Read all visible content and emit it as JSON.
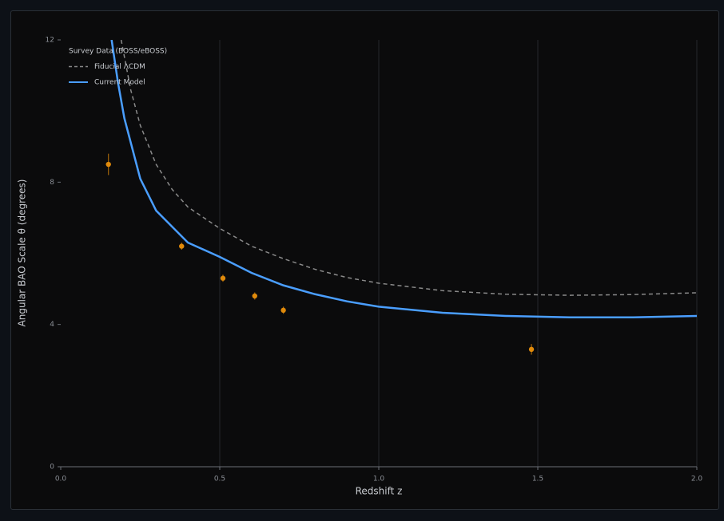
{
  "chart_data": {
    "type": "scatter",
    "xlabel": "Redshift z",
    "ylabel": "Angular BAO Scale θ (degrees)",
    "xlim": [
      0,
      2
    ],
    "ylim": [
      0,
      12
    ],
    "xticks": [
      {
        "value": 0,
        "label": "0.0"
      },
      0.5,
      {
        "value": 1,
        "label": "1.0"
      },
      1.5,
      {
        "value": 2,
        "label": "2.0"
      }
    ],
    "yticks": [
      0,
      4,
      8,
      12
    ],
    "xgrid": true,
    "legend": "top-left",
    "series": [
      {
        "name": "Survey Data (BOSS/eBOSS)",
        "type": "scatter",
        "color": "#e08a0b",
        "x": [
          0.15,
          0.38,
          0.51,
          0.61,
          0.7,
          1.48
        ],
        "values": [
          8.5,
          6.2,
          5.3,
          4.8,
          4.4,
          3.3
        ],
        "errors": [
          0.3,
          0.1,
          0.1,
          0.1,
          0.1,
          0.15
        ]
      },
      {
        "name": "Fiducial ΛCDM",
        "type": "line",
        "color": "#8a8a8a",
        "dash": true,
        "x": [
          0.19,
          0.22,
          0.25,
          0.3,
          0.35,
          0.4,
          0.5,
          0.6,
          0.7,
          0.8,
          0.9,
          1.0,
          1.2,
          1.4,
          1.6,
          1.8,
          2.0
        ],
        "values": [
          12,
          10.6,
          9.6,
          8.5,
          7.8,
          7.3,
          6.7,
          6.2,
          5.85,
          5.55,
          5.32,
          5.16,
          4.95,
          4.85,
          4.82,
          4.84,
          4.89
        ]
      },
      {
        "name": "Current Model",
        "type": "line",
        "color": "#4a9eff",
        "dash": false,
        "x": [
          0.16,
          0.18,
          0.2,
          0.25,
          0.3,
          0.4,
          0.5,
          0.6,
          0.7,
          0.8,
          0.9,
          1.0,
          1.2,
          1.4,
          1.6,
          1.8,
          2.0
        ],
        "values": [
          12,
          10.8,
          9.8,
          8.1,
          7.2,
          6.3,
          5.9,
          5.45,
          5.1,
          4.85,
          4.65,
          4.5,
          4.33,
          4.24,
          4.2,
          4.2,
          4.24
        ]
      }
    ]
  }
}
